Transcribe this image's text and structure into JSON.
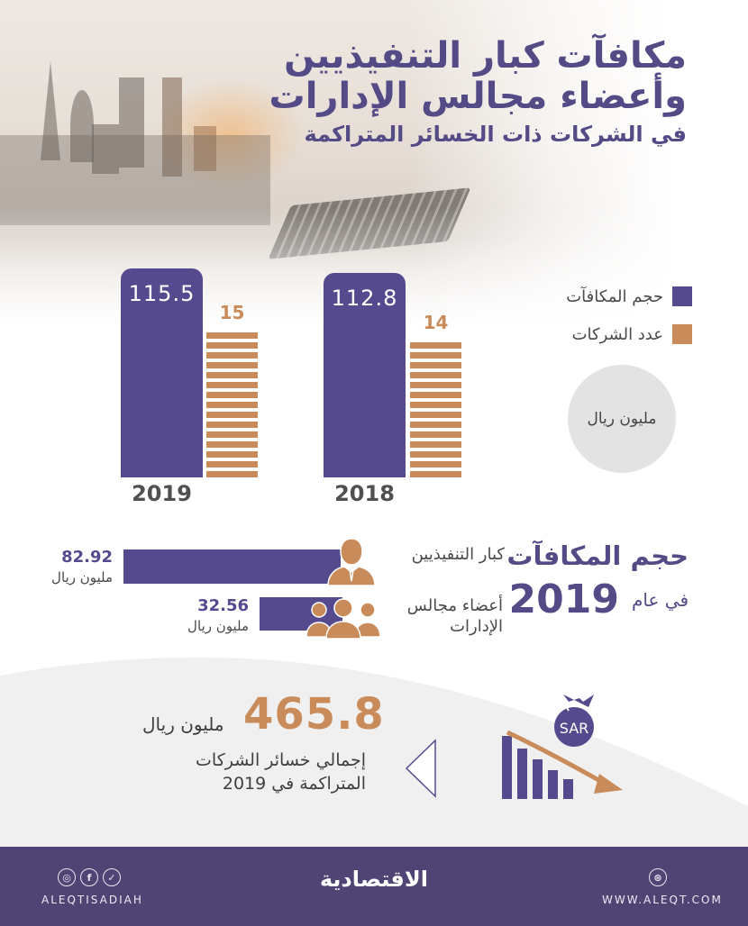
{
  "header": {
    "title_line1": "مكافآت كبار التنفيذيين",
    "title_line2": "وأعضاء مجالس الإدارات",
    "title_line3": "في الشركات ذات الخسائر المتراكمة"
  },
  "legend": {
    "items": [
      {
        "label": "حجم المكافآت",
        "color": "#564a8e"
      },
      {
        "label": "عدد الشركات",
        "color": "#c98b5a"
      }
    ],
    "unit": "مليون ريال"
  },
  "chart_data": [
    {
      "type": "bar",
      "title": "مكافآت كبار التنفيذيين وأعضاء مجالس الإدارات في الشركات ذات الخسائر المتراكمة",
      "categories": [
        "2019",
        "2018"
      ],
      "series": [
        {
          "name": "حجم المكافآت",
          "unit": "مليون ريال",
          "color": "#564a8e",
          "values": [
            115.5,
            112.8
          ]
        },
        {
          "name": "عدد الشركات",
          "color": "#c98b5a",
          "values": [
            15,
            14
          ]
        }
      ],
      "xlabel": "",
      "ylabel": "",
      "grid": false,
      "legend_position": "right"
    },
    {
      "type": "bar",
      "orientation": "horizontal",
      "title": "حجم المكافآت في عام 2019",
      "categories": [
        "كبار التنفيذيين",
        "أعضاء مجالس الإدارات"
      ],
      "values": [
        82.92,
        32.56
      ],
      "unit": "مليون ريال",
      "color": "#564a8e"
    }
  ],
  "bars": {
    "y2019": {
      "year": "2019",
      "rewards": "115.5",
      "companies": "15",
      "stripes": 15
    },
    "y2018": {
      "year": "2018",
      "rewards": "112.8",
      "companies": "14",
      "stripes": 14
    }
  },
  "section2": {
    "title": "حجم المكافآت",
    "in_year": "في عام",
    "year": "2019",
    "rows": [
      {
        "label": "كبار التنفيذيين",
        "value": "82.92",
        "unit": "مليون ريال",
        "icon": "executive-person-icon"
      },
      {
        "label_line1": "أعضاء مجالس",
        "label_line2": "الإدارات",
        "value": "32.56",
        "unit": "مليون ريال",
        "icon": "board-members-group-icon"
      }
    ]
  },
  "losses": {
    "value": "465.8",
    "unit": "مليون ريال",
    "desc_line1": "إجمالي خسائر الشركات",
    "desc_line2": "المتراكمة في 2019",
    "icon_text": "SAR"
  },
  "footer": {
    "handle": "ALEQTISADIAH",
    "brand": "الاقتصادية",
    "website": "WWW.ALEQT.COM",
    "social_icons": [
      "instagram-icon",
      "facebook-icon",
      "twitter-icon"
    ],
    "web_icon": "globe-icon"
  }
}
